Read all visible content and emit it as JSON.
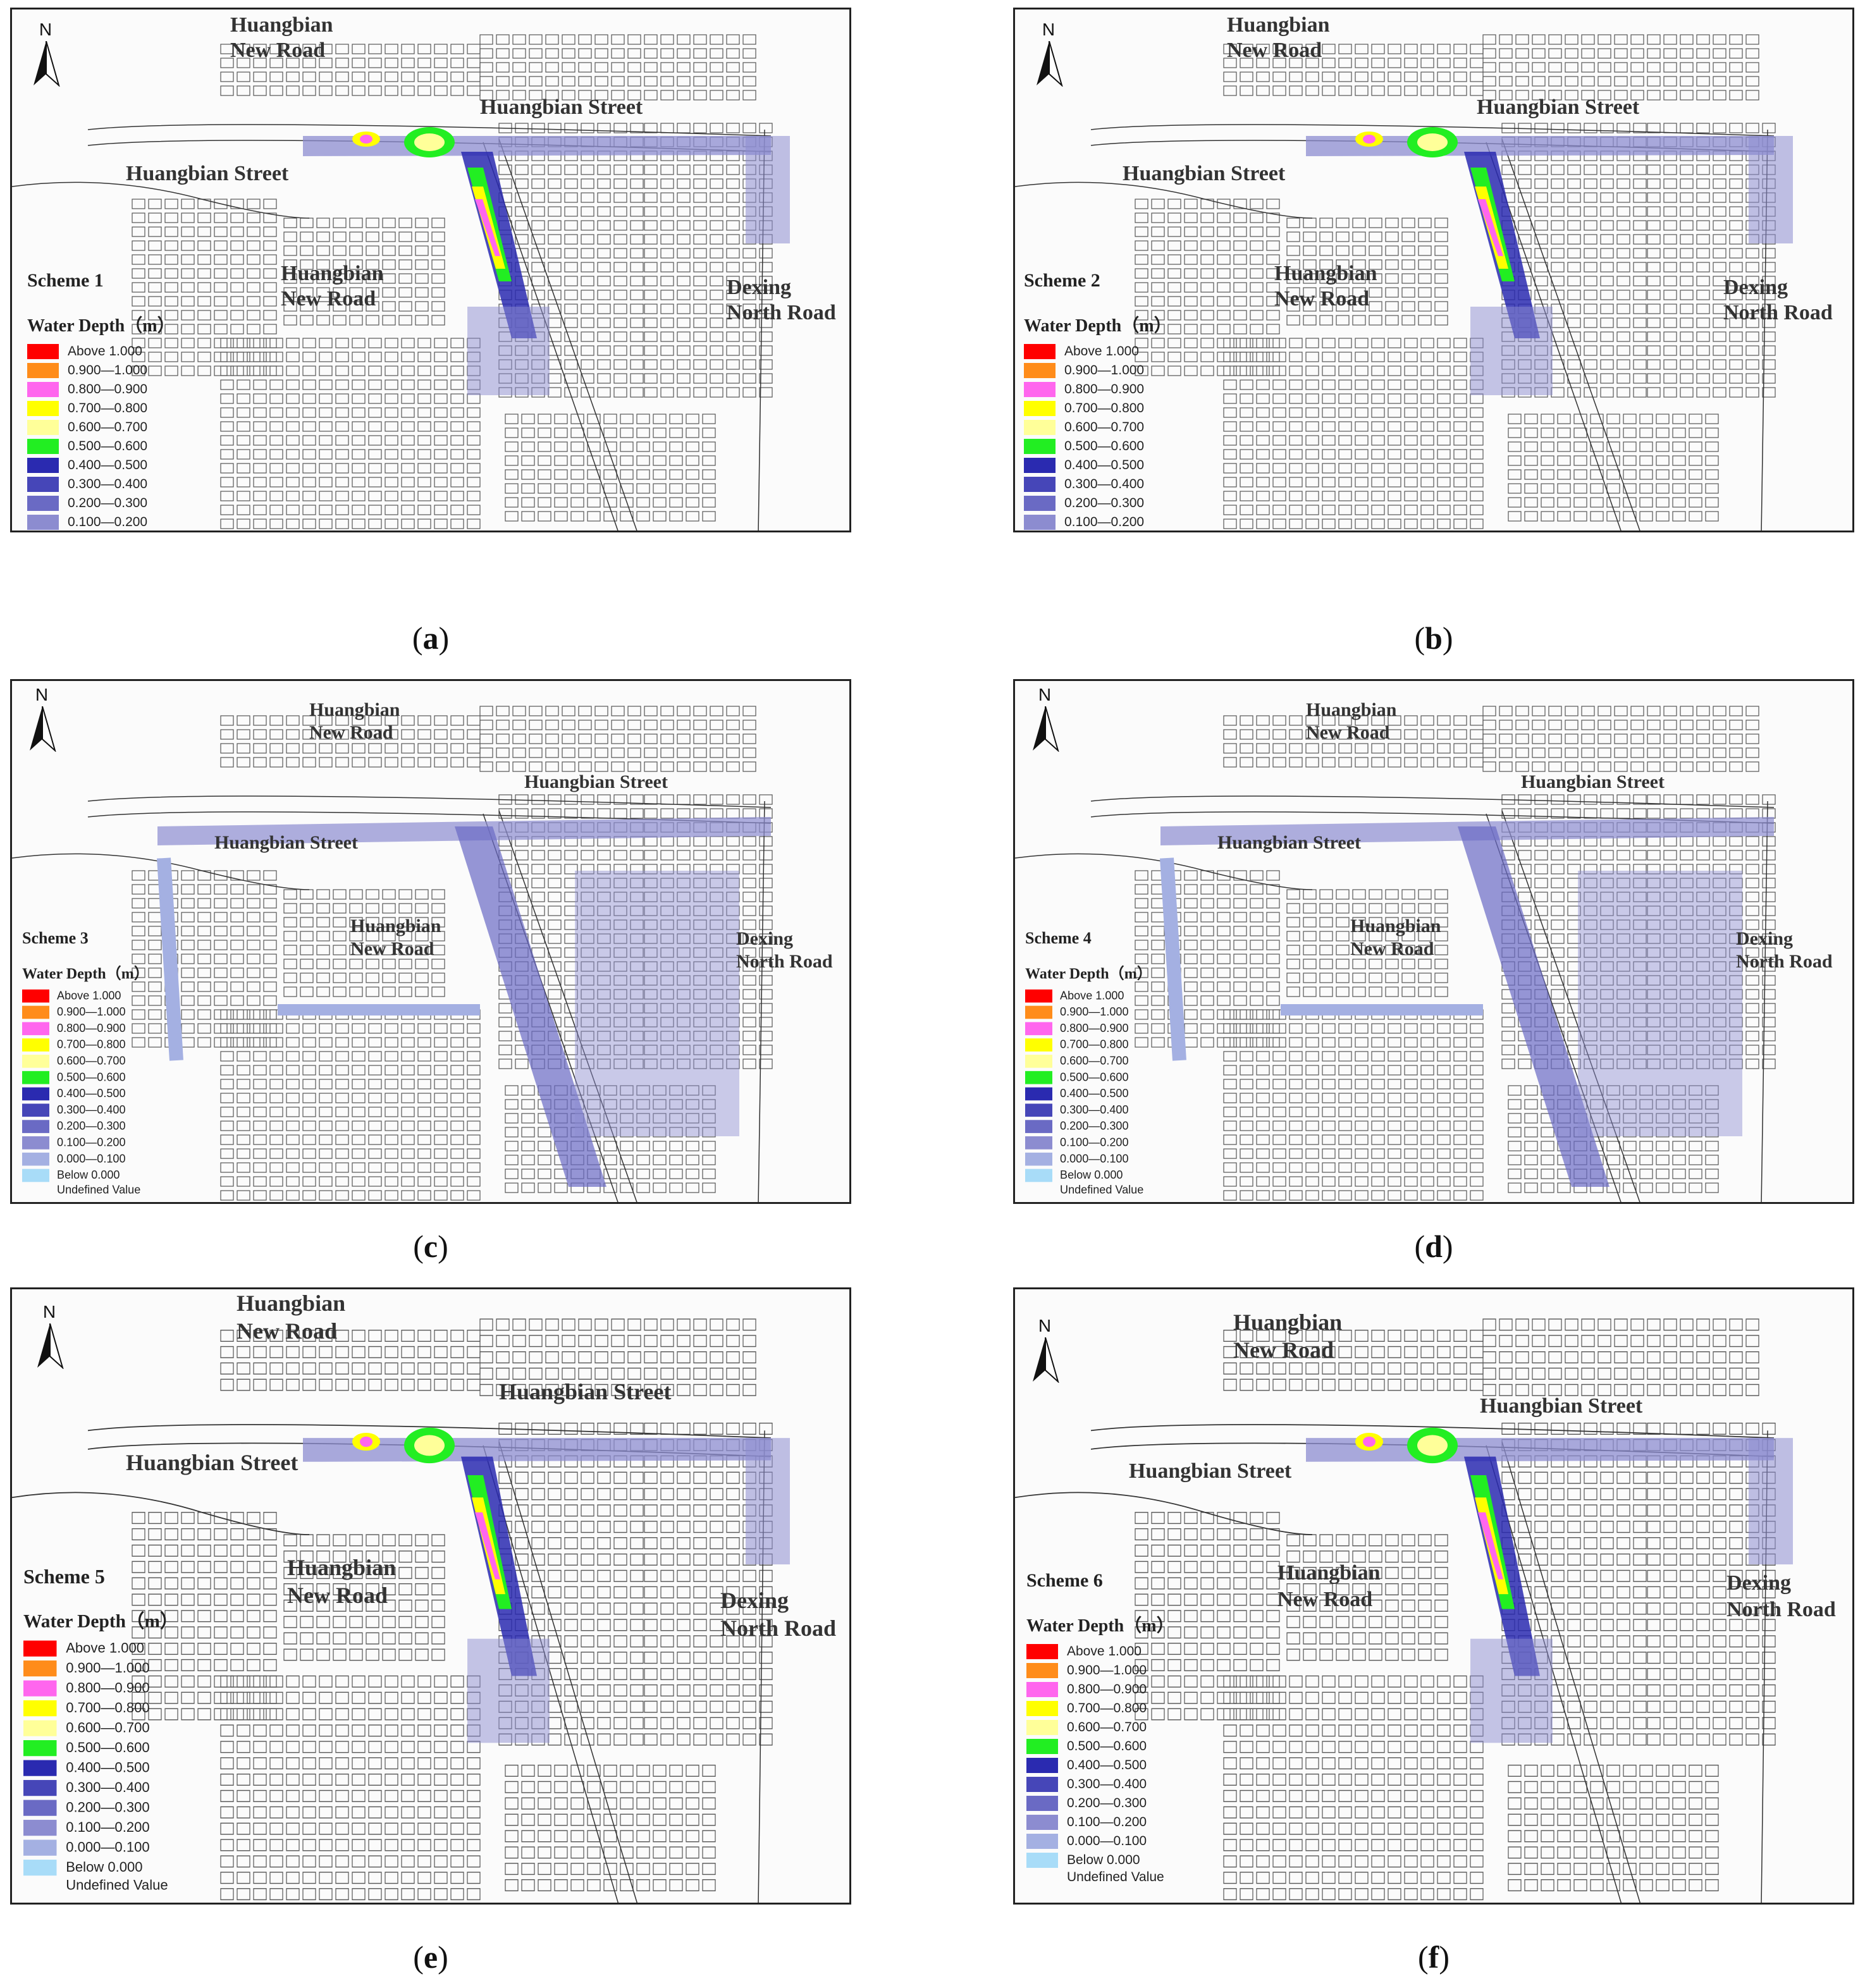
{
  "panels": [
    {
      "caption": "a",
      "scheme": "Scheme 1",
      "labels": {
        "new_road_top": [
          "Huangbian",
          "New Road"
        ],
        "street_right": "Huangbian Street",
        "street_left": "Huangbian Street",
        "new_road_mid": [
          "Huangbian",
          "New Road"
        ],
        "dexing": [
          "Dexing",
          "North Road"
        ]
      }
    },
    {
      "caption": "b",
      "scheme": "Scheme 2",
      "labels": {
        "new_road_top": [
          "Huangbian",
          "New Road"
        ],
        "street_right": "Huangbian Street",
        "street_left": "Huangbian Street",
        "new_road_mid": [
          "Huangbian",
          "New Road"
        ],
        "dexing": [
          "Dexing",
          "North Road"
        ]
      }
    },
    {
      "caption": "c",
      "scheme": "Scheme 3",
      "labels": {
        "new_road_top": [
          "Huangbian",
          "New Road"
        ],
        "street_right": "Huangbian Street",
        "street_left": "Huangbian Street",
        "new_road_mid": [
          "Huangbian",
          "New Road"
        ],
        "dexing": [
          "Dexing",
          "North Road"
        ]
      }
    },
    {
      "caption": "d",
      "scheme": "Scheme 4",
      "labels": {
        "new_road_top": [
          "Huangbian",
          "New Road"
        ],
        "street_right": "Huangbian Street",
        "street_left": "Huangbian Street",
        "new_road_mid": [
          "Huangbian",
          "New Road"
        ],
        "dexing": [
          "Dexing",
          "North Road"
        ]
      }
    },
    {
      "caption": "e",
      "scheme": "Scheme 5",
      "labels": {
        "new_road_top": [
          "Huangbian",
          "New Road"
        ],
        "street_right": "Huangbian Street",
        "street_left": "Huangbian Street",
        "new_road_mid": [
          "Huangbian",
          "New Road"
        ],
        "dexing": [
          "Dexing",
          "North Road"
        ]
      }
    },
    {
      "caption": "f",
      "scheme": "Scheme 6",
      "labels": {
        "new_road_top": [
          "Huangbian",
          "New Road"
        ],
        "street_right": "Huangbian Street",
        "street_left": "Huangbian Street",
        "new_road_mid": [
          "Huangbian",
          "New Road"
        ],
        "dexing": [
          "Dexing",
          "North Road"
        ]
      }
    }
  ],
  "north_label": "N",
  "legend": {
    "title": "Water Depth（m）",
    "classes": [
      {
        "label": "Above  1.000",
        "color": "#ff0000"
      },
      {
        "label": "0.900—1.000",
        "color": "#ff8c1a"
      },
      {
        "label": "0.800—0.900",
        "color": "#ff66ee"
      },
      {
        "label": "0.700—0.800",
        "color": "#ffff00"
      },
      {
        "label": "0.600—0.700",
        "color": "#ffff99"
      },
      {
        "label": "0.500—0.600",
        "color": "#22ee22"
      },
      {
        "label": "0.400—0.500",
        "color": "#2a2ab0"
      },
      {
        "label": "0.300—0.400",
        "color": "#4646b8"
      },
      {
        "label": "0.200—0.300",
        "color": "#6a6ac4"
      },
      {
        "label": "0.100—0.200",
        "color": "#8c8cd0"
      },
      {
        "label": "0.000—0.100",
        "color": "#a4b0e2"
      },
      {
        "label": "Below  0.000",
        "color": "#a8dcf8"
      }
    ],
    "undefined_label": "Undefined Value"
  }
}
